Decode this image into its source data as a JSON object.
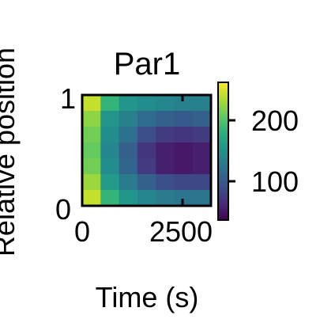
{
  "chart_data": {
    "type": "heatmap",
    "title": "Par1",
    "xlabel": "Time (s)",
    "ylabel": "Relative position",
    "xlim": [
      0,
      3200
    ],
    "ylim": [
      0,
      1
    ],
    "x_ticks": [
      0,
      2500
    ],
    "x_tick_labels": [
      "0",
      "2500"
    ],
    "y_ticks": [
      0,
      1
    ],
    "y_tick_labels": [
      "0",
      "1"
    ],
    "colormap": "viridis",
    "colorbar": {
      "range": [
        40,
        270
      ],
      "ticks": [
        100,
        200
      ],
      "tick_labels": [
        "100",
        "200"
      ]
    },
    "grid": false,
    "legend": "none",
    "rows_position": [
      1.0,
      0.83,
      0.67,
      0.5,
      0.33,
      0.17,
      0.0
    ],
    "cols_time": [
      0,
      500,
      1000,
      1500,
      2000,
      2500,
      3000
    ],
    "intensity": [
      [
        250,
        190,
        160,
        150,
        145,
        140,
        140
      ],
      [
        230,
        160,
        140,
        120,
        110,
        105,
        110
      ],
      [
        220,
        150,
        125,
        95,
        80,
        75,
        80
      ],
      [
        215,
        145,
        110,
        75,
        60,
        55,
        60
      ],
      [
        220,
        150,
        115,
        80,
        60,
        55,
        60
      ],
      [
        235,
        165,
        135,
        110,
        95,
        90,
        90
      ],
      [
        250,
        190,
        160,
        145,
        135,
        130,
        130
      ]
    ]
  }
}
